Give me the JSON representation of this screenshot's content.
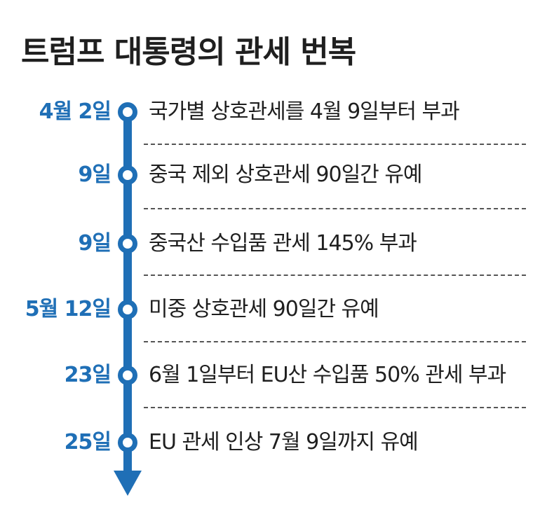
{
  "title": "트럼프 대통령의 관세 번복",
  "accent_color": "#1f6fb6",
  "timeline": [
    {
      "date": "4월 2일",
      "event": "국가별 상호관세를 4월 9일부터 부과"
    },
    {
      "date": "9일",
      "event": "중국 제외 상호관세 90일간 유예"
    },
    {
      "date": "9일",
      "event": "중국산 수입품 관세 145% 부과"
    },
    {
      "date": "5월 12일",
      "event": "미중 상호관세 90일간 유예"
    },
    {
      "date": "23일",
      "event": "6월 1일부터 EU산 수입품 50% 관세 부과"
    },
    {
      "date": "25일",
      "event": "EU 관세 인상 7월 9일까지 유예"
    }
  ]
}
